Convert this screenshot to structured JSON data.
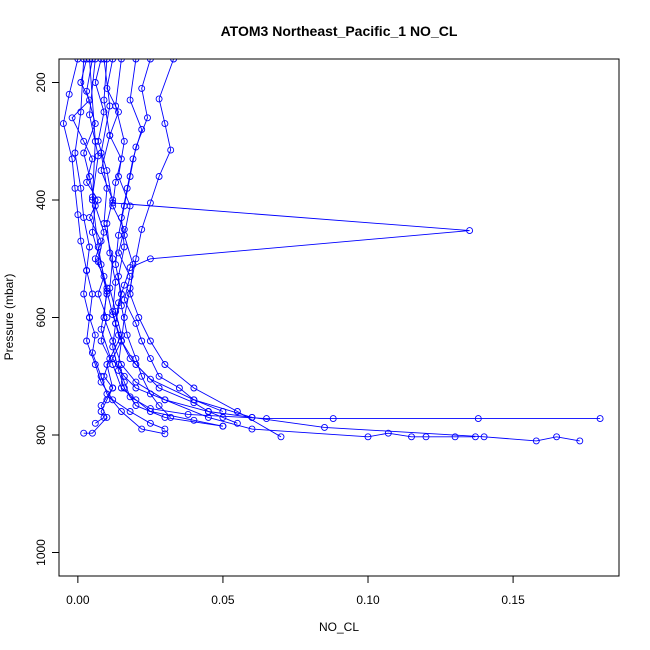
{
  "chart_data": {
    "type": "scatter",
    "title": "ATOM3 Northeast_Pacific_1 NO_CL",
    "xlabel": "NO_CL",
    "ylabel": "Pressure (mbar)",
    "xlim": [
      -0.0065,
      0.1865
    ],
    "ylim": [
      1040,
      160
    ],
    "y_reversed": true,
    "x_ticks": [
      0.0,
      0.05,
      0.1,
      0.15
    ],
    "x_tick_labels": [
      "0.00",
      "0.05",
      "0.10",
      "0.15"
    ],
    "y_ticks": [
      200,
      400,
      600,
      800,
      1000
    ],
    "y_tick_labels": [
      "200",
      "400",
      "600",
      "800",
      "1000"
    ],
    "grid": false,
    "line_color": "#0000ff",
    "marker": "open-circle",
    "series": [
      {
        "x": [
          0.003,
          0.001,
          0.004,
          -0.002,
          0.002,
          0.005,
          0.003,
          0.007,
          0.004,
          0.008,
          0.006,
          0.009,
          0.007,
          0.01,
          0.008,
          0.011,
          0.009,
          0.012,
          0.01,
          0.008,
          0.009,
          0.006
        ],
        "y": [
          160,
          200,
          230,
          260,
          300,
          330,
          370,
          400,
          430,
          470,
          500,
          530,
          560,
          600,
          640,
          670,
          700,
          720,
          740,
          760,
          770,
          780
        ]
      },
      {
        "x": [
          0.012,
          0.01,
          0.014,
          0.011,
          0.015,
          0.013,
          0.012,
          0.016,
          0.014,
          0.018,
          0.016,
          0.02,
          0.022,
          0.025,
          0.028,
          0.035,
          0.04,
          0.05
        ],
        "y": [
          160,
          210,
          250,
          290,
          330,
          370,
          410,
          450,
          490,
          530,
          570,
          610,
          640,
          670,
          700,
          720,
          740,
          760
        ]
      },
      {
        "x": [
          0.008,
          0.006,
          0.009,
          0.007,
          0.01,
          0.012,
          0.135,
          0.025,
          0.018,
          0.016,
          0.014,
          0.013,
          0.015,
          0.012,
          0.016,
          0.02,
          0.03,
          0.045,
          0.06
        ],
        "y": [
          160,
          200,
          250,
          300,
          350,
          405,
          452,
          500,
          515,
          545,
          575,
          610,
          640,
          670,
          700,
          720,
          740,
          760,
          770
        ]
      },
      {
        "x": [
          0.005,
          0.003,
          0.006,
          0.002,
          0.004,
          0.006,
          0.005,
          0.008,
          0.01,
          0.009,
          0.012,
          0.015,
          0.02,
          0.03,
          0.045,
          0.06,
          0.1,
          0.107,
          0.115,
          0.12,
          0.13,
          0.137
        ],
        "y": [
          160,
          215,
          270,
          320,
          360,
          410,
          455,
          510,
          550,
          600,
          640,
          680,
          710,
          740,
          770,
          790,
          803,
          797,
          803,
          803,
          803,
          803
        ]
      },
      {
        "x": [
          0.015,
          0.013,
          0.016,
          0.014,
          0.018,
          0.016,
          0.019,
          0.018,
          0.021,
          0.025,
          0.03,
          0.04,
          0.055,
          0.07
        ],
        "y": [
          160,
          240,
          300,
          360,
          410,
          460,
          510,
          560,
          600,
          640,
          680,
          720,
          760,
          803
        ]
      },
      {
        "x": [
          0.01,
          0.009,
          0.011,
          0.008,
          0.012,
          0.01,
          0.011,
          0.013,
          0.012,
          0.014,
          0.018,
          0.025,
          0.04,
          0.06,
          0.085,
          0.14,
          0.158,
          0.165,
          0.173
        ],
        "y": [
          160,
          230,
          290,
          350,
          400,
          440,
          490,
          540,
          590,
          630,
          670,
          705,
          740,
          770,
          787,
          803,
          810,
          803,
          810
        ]
      },
      {
        "x": [
          0.02,
          0.018,
          0.022,
          0.019,
          0.017,
          0.015,
          0.016,
          0.014,
          0.015,
          0.017,
          0.02,
          0.022,
          0.025,
          0.028,
          0.032
        ],
        "y": [
          160,
          230,
          280,
          330,
          380,
          430,
          480,
          530,
          580,
          630,
          670,
          700,
          730,
          750,
          770
        ]
      },
      {
        "x": [
          0.033,
          0.028,
          0.03,
          0.032,
          0.028,
          0.025,
          0.022,
          0.02,
          0.018,
          0.016,
          0.015,
          0.014,
          0.016,
          0.018,
          0.025,
          0.038,
          0.065,
          0.088,
          0.138,
          0.18
        ],
        "y": [
          160,
          228,
          270,
          315,
          360,
          405,
          450,
          500,
          550,
          600,
          640,
          680,
          710,
          735,
          755,
          765,
          772,
          772,
          772,
          772
        ]
      },
      {
        "x": [
          0.002,
          0.001,
          -0.001,
          0.001,
          0.002,
          0.004,
          0.003,
          0.005,
          0.004,
          0.006,
          0.005,
          0.008,
          0.01,
          0.015,
          0.022,
          0.03
        ],
        "y": [
          160,
          250,
          320,
          380,
          430,
          480,
          520,
          560,
          600,
          630,
          660,
          700,
          730,
          760,
          790,
          798
        ]
      },
      {
        "x": [
          0.0,
          -0.003,
          -0.005,
          -0.002,
          -0.001,
          0.0,
          0.001,
          0.003,
          0.002,
          0.004,
          0.003,
          0.006,
          0.008,
          0.012,
          0.018,
          0.025,
          0.03
        ],
        "y": [
          160,
          220,
          270,
          330,
          380,
          425,
          470,
          520,
          560,
          600,
          640,
          680,
          710,
          740,
          760,
          780,
          790
        ]
      },
      {
        "x": [
          0.006,
          0.004,
          0.007,
          0.005,
          0.009,
          0.007,
          0.01,
          0.012,
          0.015,
          0.02,
          0.028,
          0.04,
          0.045,
          0.05,
          0.055
        ],
        "y": [
          160,
          255,
          325,
          395,
          455,
          505,
          555,
          595,
          640,
          680,
          720,
          745,
          760,
          770,
          780
        ]
      },
      {
        "x": [
          0.025,
          0.022,
          0.024,
          0.02,
          0.018,
          0.016,
          0.014,
          0.013,
          0.015,
          0.013,
          0.012,
          0.014,
          0.016,
          0.02,
          0.03,
          0.05
        ],
        "y": [
          160,
          210,
          260,
          310,
          360,
          410,
          460,
          510,
          560,
          610,
          650,
          690,
          720,
          750,
          770,
          785
        ]
      },
      {
        "x": [
          0.004,
          0.006,
          0.005,
          0.007,
          0.01,
          0.008,
          0.012,
          0.015,
          0.02,
          0.025,
          0.04,
          0.05
        ],
        "y": [
          160,
          300,
          400,
          480,
          560,
          620,
          680,
          720,
          740,
          760,
          775,
          785
        ]
      },
      {
        "x": [
          0.009,
          0.011,
          0.008,
          0.01,
          0.009,
          0.012,
          0.011,
          0.013,
          0.015,
          0.01,
          0.012,
          0.008,
          0.01,
          0.005,
          0.002
        ],
        "y": [
          160,
          240,
          320,
          380,
          440,
          500,
          550,
          590,
          630,
          680,
          720,
          750,
          770,
          797,
          797
        ]
      }
    ]
  }
}
